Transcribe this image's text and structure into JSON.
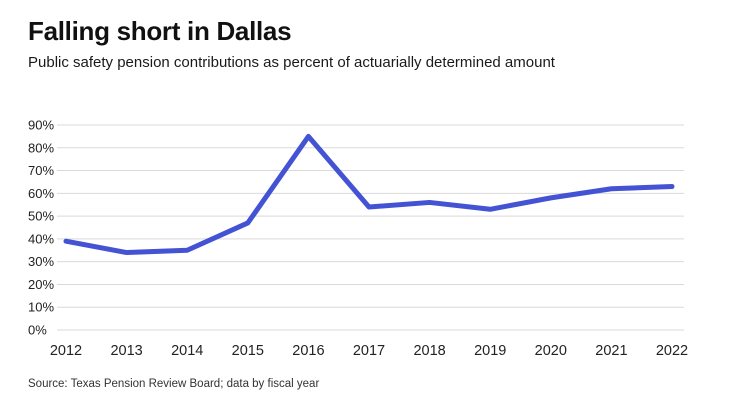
{
  "header": {
    "title": "Falling short in Dallas",
    "subtitle": "Public safety pension contributions as percent of actuarially determined amount"
  },
  "chart_data": {
    "type": "line",
    "title": "Falling short in Dallas",
    "subtitle": "Public safety pension contributions as percent of actuarially determined amount",
    "x": [
      "2012",
      "2013",
      "2014",
      "2015",
      "2016",
      "2017",
      "2018",
      "2019",
      "2020",
      "2021",
      "2022"
    ],
    "series": [
      {
        "name": "Public safety pension contributions as percent of actuarially determined amount",
        "values": [
          39,
          34,
          35,
          47,
          85,
          54,
          56,
          53,
          58,
          62,
          63
        ]
      }
    ],
    "xlabel": "",
    "ylabel": "",
    "ylim": [
      0,
      90
    ],
    "ytick_step": 10,
    "ytick_suffix": "%",
    "grid": true,
    "legend": "none",
    "line_color": "#4353d4",
    "grid_color": "#d9d9d9",
    "tick_label_color": "#222222"
  },
  "footer": {
    "source": "Source: Texas Pension Review Board; data by fiscal year"
  }
}
